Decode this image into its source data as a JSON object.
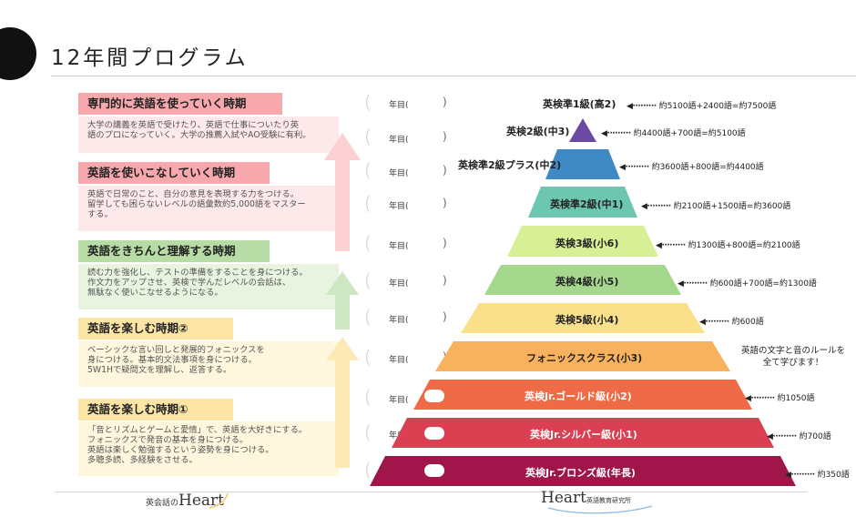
{
  "title": "12年間プログラム",
  "stages": [
    {
      "heading": "専門的に英語を使っていく時期",
      "body": "大学の講義を英語で受けたり、英語で仕事についたり英\n語のプロになっていく。大学の推薦入試やAO受験に有利。",
      "head_color": "#f7a8ad",
      "body_color": "#fde8ea",
      "arrow_color": "#fbd1d4"
    },
    {
      "heading": "英語を使いこなしていく時期",
      "body": "英語で日常のこと、自分の意見を表現する力をつける。\n留学しても困らないレベルの語彙数約5,000語をマスター\nする。",
      "head_color": "#f7a8ad",
      "body_color": "#fde8ea",
      "arrow_color": "#fbd1d4"
    },
    {
      "heading": "英語をきちんと理解する時期",
      "body": "読む力を強化し、テストの準備をすることを身につける。\n作文力をアップさせ、英検で学んだレベルの会話は、\n無駄なく使いこなせるようになる。",
      "head_color": "#b8dca6",
      "body_color": "#e8f3e0",
      "arrow_color": "#cfe6c2"
    },
    {
      "heading": "英語を楽しむ時期②",
      "body": "ベーシックな言い回しと発展的フォニックスを\n身につける。基本的文法事項を身につける。\n5W1Hで疑問文を理解し、返答する。",
      "head_color": "#fde5a6",
      "body_color": "#fef6dd",
      "arrow_color": "#fde9b5"
    },
    {
      "heading": "英語を楽しむ時期①",
      "body": "「音とリズムとゲームと愛情」で、英語を大好きにする。\nフォニックスで発音の基本を身につける。\n英語は楽しく勉強するという姿勢を身につける。\n多聴多読、多経験をさせる。",
      "head_color": "#fde5a6",
      "body_color": "#fef6dd",
      "arrow_color": "#fde9b5"
    }
  ],
  "grade_label": "年目(",
  "grade_close": ")",
  "tiers": [
    {
      "name": "英検準1級(高2)",
      "vocab": "約5100語+2400語=約7500語",
      "color": "#ffffff"
    },
    {
      "name": "英検2級(中3)",
      "vocab": "約4400語+700語=約5100語",
      "color": "#6a4aa5"
    },
    {
      "name": "英検準2級プラス(中2)",
      "vocab": "約3600語+800語=約4400語",
      "color": "#3f89c5"
    },
    {
      "name": "英検準2級(中1)",
      "vocab": "約2100語+1500語=約3600語",
      "color": "#6cc6b0"
    },
    {
      "name": "英検3級(小6)",
      "vocab": "約1300語+800語=約2100語",
      "color": "#d9ef95"
    },
    {
      "name": "英検4級(小5)",
      "vocab": "約600語+700語=約1300語",
      "color": "#a5d88c"
    },
    {
      "name": "英検5級(小4)",
      "vocab": "約600語",
      "color": "#fbe08c"
    },
    {
      "name": "フォニックスクラス(小3)",
      "vocab": "",
      "color": "#f8b15d"
    },
    {
      "name": "英検Jr.ゴールド級(小2)",
      "vocab": "約1050語",
      "color": "#ef6b48"
    },
    {
      "name": "英検Jr.シルバー級(小1)",
      "vocab": "約700語",
      "color": "#db3f52"
    },
    {
      "name": "英検Jr.ブロンズ級(年長)",
      "vocab": "約350語",
      "color": "#a0154a"
    }
  ],
  "phonics_note": "英語の文字と音のルールを\n全て学びます！",
  "vocab_dots": "◀·········",
  "footer": {
    "left_small": "英会話の",
    "left_big": "Heart",
    "right_big": "Heart",
    "right_small": "英語教育研究所"
  }
}
